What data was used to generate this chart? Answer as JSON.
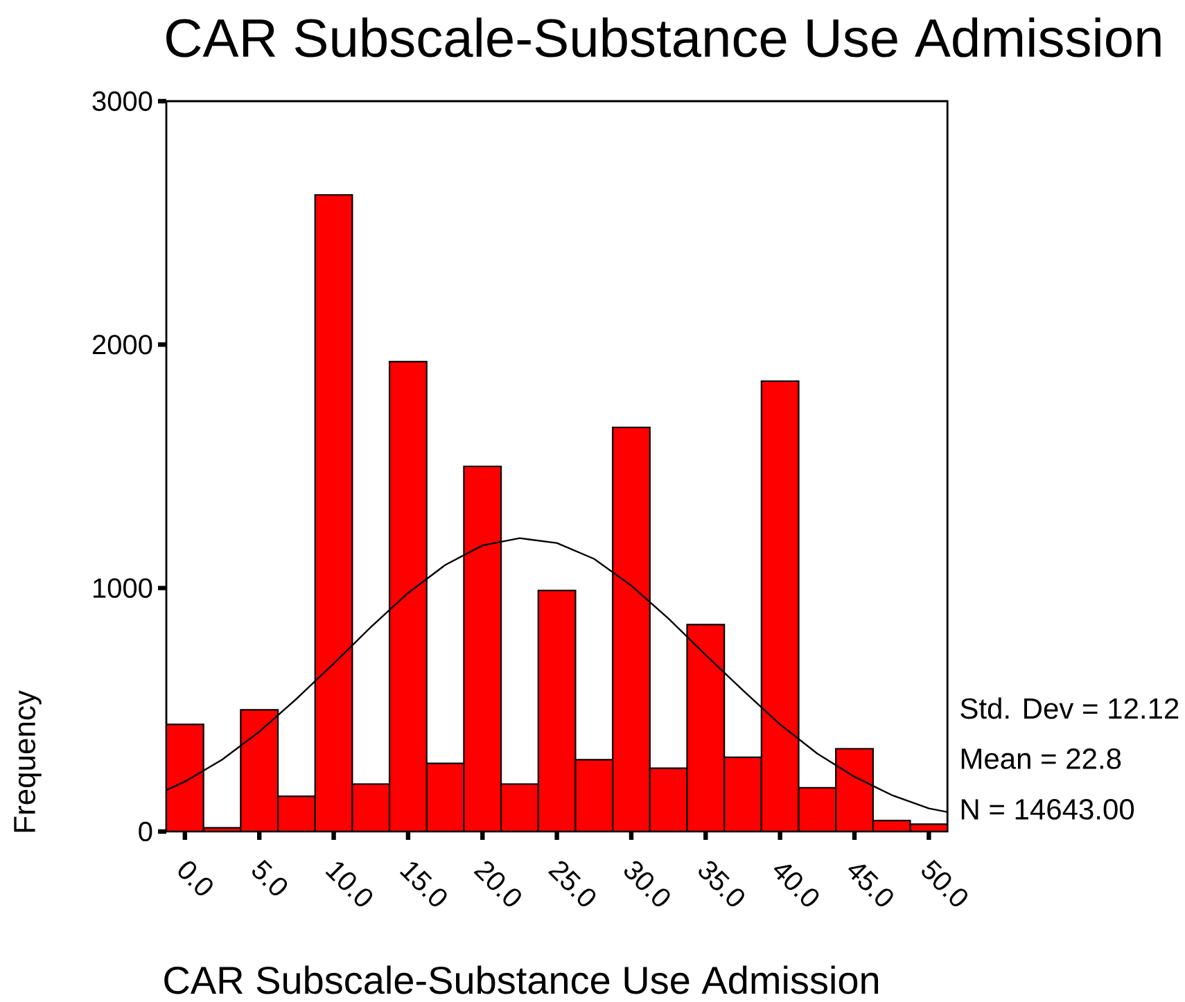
{
  "chart_data": {
    "type": "histogram",
    "title": "CAR Subscale-Substance Use Admission",
    "xlabel": "CAR Subscale-Substance Use Admission",
    "ylabel": "Frequency",
    "bins": [
      -1.25,
      1.25,
      3.75,
      6.25,
      8.75,
      11.25,
      13.75,
      16.25,
      18.75,
      21.25,
      23.75,
      26.25,
      28.75,
      31.25,
      33.75,
      36.25,
      38.75,
      41.25,
      43.75,
      46.25,
      48.75,
      51.25
    ],
    "values": [
      440,
      15,
      500,
      145,
      2615,
      195,
      1930,
      280,
      1500,
      195,
      990,
      295,
      1660,
      260,
      850,
      305,
      1850,
      180,
      340,
      45,
      30
    ],
    "color": "#ff0000",
    "series": [
      {
        "type": "line",
        "color": "#000000",
        "x": [
          -1.25,
          0,
          2.5,
          5,
          7.5,
          10,
          12.5,
          15,
          17.5,
          20,
          22.5,
          25,
          27.5,
          30,
          32.5,
          35,
          37.5,
          40,
          42.5,
          45,
          47.5,
          50,
          51.25
        ],
        "values": [
          170,
          205,
          295,
          410,
          545,
          690,
          840,
          980,
          1095,
          1175,
          1205,
          1185,
          1120,
          1010,
          875,
          725,
          580,
          440,
          320,
          225,
          150,
          95,
          80
        ]
      }
    ],
    "xlim": [
      -1.25,
      51.25
    ],
    "ylim": [
      0,
      3000
    ],
    "xticks": [
      {
        "value": 0,
        "label": "0.0"
      },
      {
        "value": 5,
        "label": "5.0"
      },
      {
        "value": 10,
        "label": "10.0"
      },
      {
        "value": 15,
        "label": "15.0"
      },
      {
        "value": 20,
        "label": "20.0"
      },
      {
        "value": 25,
        "label": "25.0"
      },
      {
        "value": 30,
        "label": "30.0"
      },
      {
        "value": 35,
        "label": "35.0"
      },
      {
        "value": 40,
        "label": "40.0"
      },
      {
        "value": 45,
        "label": "45.0"
      },
      {
        "value": 50,
        "label": "50.0"
      }
    ],
    "yticks": [
      0,
      1000,
      2000,
      3000
    ],
    "annotations": [
      "Std. Dev = 12.12",
      "Mean = 22.8",
      "N = 14643.00"
    ]
  }
}
